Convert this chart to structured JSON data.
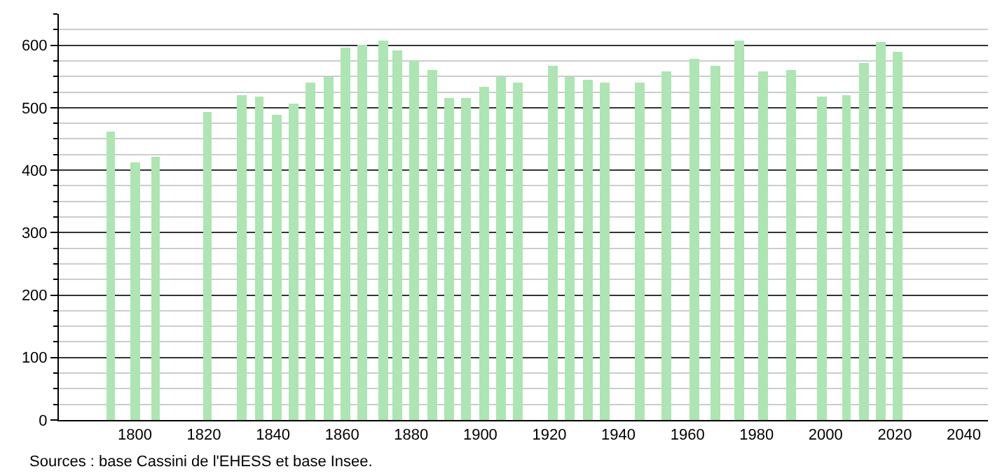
{
  "chart_data": {
    "type": "bar",
    "x": [
      1793,
      1800,
      1806,
      1821,
      1831,
      1836,
      1841,
      1846,
      1851,
      1856,
      1861,
      1866,
      1872,
      1876,
      1881,
      1886,
      1891,
      1896,
      1901,
      1906,
      1911,
      1921,
      1926,
      1931,
      1936,
      1946,
      1954,
      1962,
      1968,
      1975,
      1982,
      1990,
      1999,
      2006,
      2011,
      2016,
      2021
    ],
    "values": [
      461,
      412,
      421,
      493,
      520,
      517,
      489,
      506,
      540,
      550,
      597,
      601,
      607,
      592,
      576,
      560,
      515,
      515,
      533,
      550,
      540,
      566,
      550,
      545,
      540,
      540,
      558,
      578,
      567,
      607,
      558,
      560,
      517,
      520,
      571,
      605,
      589
    ],
    "color": "#ade5b3",
    "xlim": [
      1778,
      2047
    ],
    "xticks": [
      1800,
      1820,
      1840,
      1860,
      1880,
      1900,
      1920,
      1940,
      1960,
      1980,
      2000,
      2020,
      2040
    ],
    "ylim": [
      0,
      650
    ],
    "yticks": [
      0,
      100,
      200,
      300,
      400,
      500,
      600
    ],
    "grid": "y",
    "annotations": [
      "Sources : base Cassini de l'EHESS et base Insee."
    ]
  }
}
